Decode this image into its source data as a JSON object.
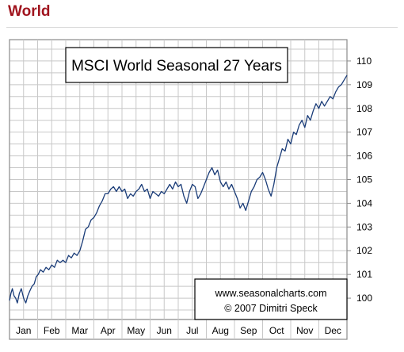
{
  "page": {
    "heading": "World"
  },
  "chart_data": {
    "type": "line",
    "title": "MSCI World Seasonal 27 Years",
    "credit": {
      "url": "www.seasonalcharts.com",
      "author": "© 2007 Dimitri Speck"
    },
    "xlabel": "",
    "ylabel": "",
    "months": [
      "Jan",
      "Feb",
      "Mar",
      "Apr",
      "May",
      "Jun",
      "Jul",
      "Aug",
      "Sep",
      "Oct",
      "Nov",
      "Dec"
    ],
    "yticks": [
      100,
      101,
      102,
      103,
      104,
      105,
      106,
      107,
      108,
      109,
      110
    ],
    "ylim": [
      99.1,
      110.9
    ],
    "grid": true,
    "line_color": "#1a3c78",
    "series": [
      {
        "x": [
          0,
          0.05,
          0.1,
          0.16,
          0.22,
          0.28,
          0.35,
          0.42,
          0.5,
          0.58,
          0.65,
          0.72,
          0.8,
          0.88,
          0.95,
          1.02,
          1.1,
          1.2,
          1.3,
          1.4,
          1.5,
          1.6,
          1.7,
          1.8,
          1.9,
          2.0,
          2.1,
          2.2,
          2.3,
          2.4,
          2.5,
          2.6,
          2.7,
          2.8,
          2.9,
          3.0,
          3.1,
          3.2,
          3.3,
          3.4,
          3.5,
          3.6,
          3.7,
          3.8,
          3.9,
          4.0,
          4.1,
          4.2,
          4.3,
          4.4,
          4.5,
          4.6,
          4.7,
          4.8,
          4.9,
          5.0,
          5.1,
          5.2,
          5.3,
          5.4,
          5.5,
          5.6,
          5.7,
          5.8,
          5.9,
          6.0,
          6.1,
          6.2,
          6.3,
          6.4,
          6.5,
          6.6,
          6.7,
          6.8,
          6.9,
          7.0,
          7.1,
          7.2,
          7.3,
          7.4,
          7.5,
          7.6,
          7.7,
          7.8,
          7.9,
          8.0,
          8.1,
          8.2,
          8.3,
          8.4,
          8.5,
          8.6,
          8.7,
          8.8,
          8.9,
          9.0,
          9.1,
          9.2,
          9.3,
          9.4,
          9.5,
          9.6,
          9.7,
          9.8,
          9.9,
          10.0,
          10.1,
          10.2,
          10.3,
          10.4,
          10.5,
          10.6,
          10.7,
          10.8,
          10.9,
          11.0,
          11.1,
          11.2,
          11.3,
          11.4,
          11.5,
          11.6,
          11.7,
          11.8,
          11.9,
          12.0
        ],
        "values": [
          99.9,
          100.2,
          100.4,
          100.1,
          100.0,
          99.8,
          100.2,
          100.4,
          100.0,
          99.8,
          100.1,
          100.3,
          100.5,
          100.6,
          100.9,
          101.0,
          101.2,
          101.1,
          101.3,
          101.2,
          101.4,
          101.3,
          101.6,
          101.5,
          101.6,
          101.5,
          101.8,
          101.7,
          101.9,
          101.8,
          102.0,
          102.4,
          102.9,
          103.0,
          103.3,
          103.4,
          103.6,
          103.9,
          104.1,
          104.4,
          104.4,
          104.6,
          104.7,
          104.5,
          104.7,
          104.5,
          104.6,
          104.2,
          104.4,
          104.3,
          104.5,
          104.6,
          104.8,
          104.5,
          104.6,
          104.2,
          104.5,
          104.4,
          104.3,
          104.5,
          104.4,
          104.6,
          104.8,
          104.6,
          104.9,
          104.7,
          104.8,
          104.3,
          104.0,
          104.5,
          104.8,
          104.7,
          104.2,
          104.4,
          104.7,
          105.0,
          105.3,
          105.5,
          105.2,
          105.4,
          104.9,
          104.7,
          104.9,
          104.6,
          104.8,
          104.5,
          104.2,
          103.8,
          104.0,
          103.7,
          104.1,
          104.5,
          104.7,
          105.0,
          105.1,
          105.3,
          105.0,
          104.6,
          104.3,
          104.8,
          105.5,
          105.9,
          106.3,
          106.2,
          106.7,
          106.5,
          107.0,
          106.9,
          107.3,
          107.5,
          107.2,
          107.7,
          107.5,
          107.9,
          108.2,
          108.0,
          108.3,
          108.1,
          108.3,
          108.5,
          108.4,
          108.7,
          108.9,
          109.0,
          109.2,
          109.4
        ]
      }
    ]
  }
}
